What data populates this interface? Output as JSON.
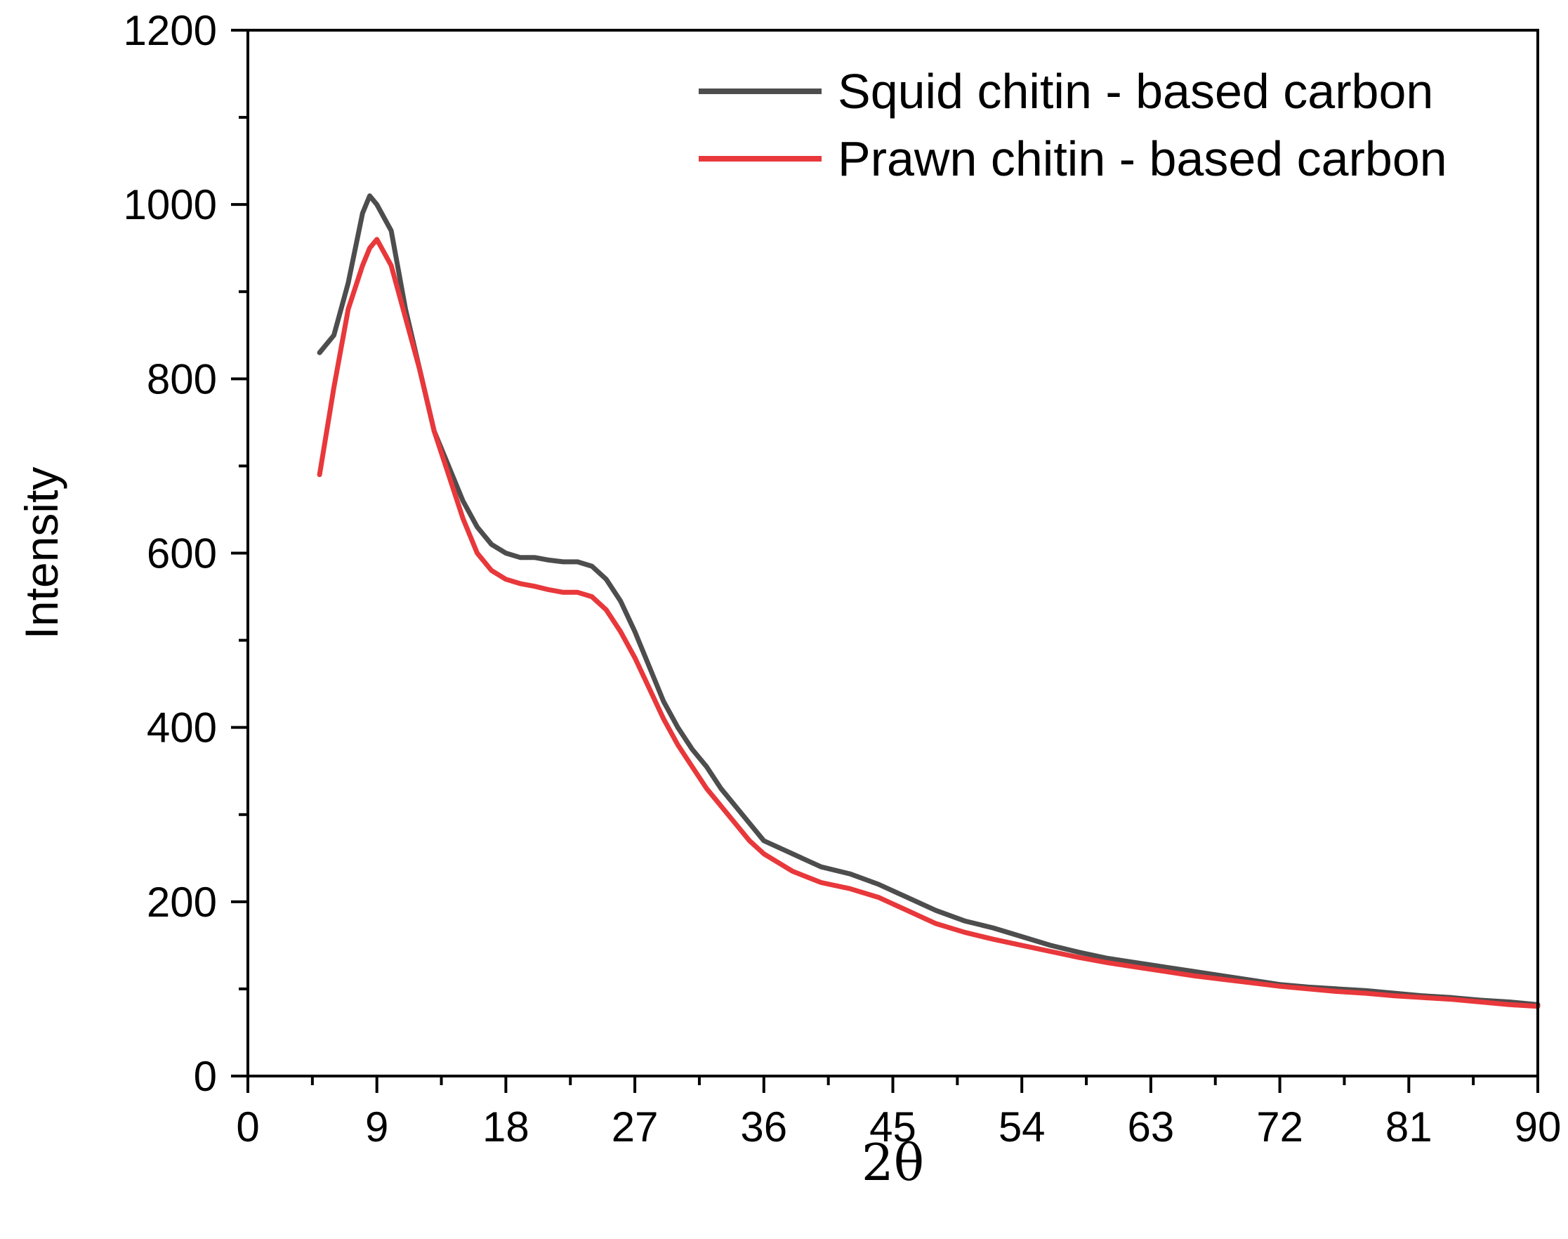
{
  "chart_data": {
    "type": "line",
    "title": "",
    "xlabel": "2θ",
    "ylabel": "Intensity",
    "xlim": [
      0,
      90
    ],
    "ylim": [
      0,
      1200
    ],
    "x_ticks": [
      0,
      9,
      18,
      27,
      36,
      45,
      54,
      63,
      72,
      81,
      90
    ],
    "y_ticks": [
      0,
      200,
      400,
      600,
      800,
      1000,
      1200
    ],
    "grid": false,
    "legend_position": "top-right",
    "series": [
      {
        "name": "Squid chitin - based carbon",
        "color": "#4d4d4d",
        "x": [
          5,
          6,
          7,
          8,
          8.5,
          9,
          10,
          11,
          12,
          13,
          14,
          15,
          16,
          17,
          18,
          19,
          20,
          21,
          22,
          23,
          24,
          25,
          26,
          27,
          28,
          29,
          30,
          31,
          32,
          33,
          34,
          35,
          36,
          38,
          40,
          42,
          44,
          46,
          48,
          50,
          52,
          54,
          56,
          58,
          60,
          62,
          64,
          66,
          68,
          70,
          72,
          74,
          76,
          78,
          80,
          82,
          84,
          86,
          88,
          90
        ],
        "y": [
          830,
          850,
          910,
          990,
          1010,
          1000,
          970,
          880,
          810,
          740,
          700,
          660,
          630,
          610,
          600,
          595,
          595,
          592,
          590,
          590,
          585,
          570,
          545,
          510,
          470,
          430,
          400,
          375,
          355,
          330,
          310,
          290,
          270,
          255,
          240,
          232,
          220,
          205,
          190,
          178,
          170,
          160,
          150,
          142,
          135,
          130,
          125,
          120,
          115,
          110,
          105,
          102,
          100,
          98,
          95,
          92,
          90,
          87,
          85,
          82
        ]
      },
      {
        "name": "Prawn chitin - based carbon",
        "color": "#e8383b",
        "x": [
          5,
          6,
          7,
          8,
          8.5,
          9,
          10,
          11,
          12,
          13,
          14,
          15,
          16,
          17,
          18,
          19,
          20,
          21,
          22,
          23,
          24,
          25,
          26,
          27,
          28,
          29,
          30,
          31,
          32,
          33,
          34,
          35,
          36,
          38,
          40,
          42,
          44,
          46,
          48,
          50,
          52,
          54,
          56,
          58,
          60,
          62,
          64,
          66,
          68,
          70,
          72,
          74,
          76,
          78,
          80,
          82,
          84,
          86,
          88,
          90
        ],
        "y": [
          690,
          790,
          880,
          930,
          950,
          960,
          930,
          870,
          810,
          740,
          690,
          640,
          600,
          580,
          570,
          565,
          562,
          558,
          555,
          555,
          550,
          535,
          510,
          480,
          445,
          410,
          380,
          355,
          330,
          310,
          290,
          270,
          255,
          235,
          222,
          215,
          205,
          190,
          175,
          165,
          157,
          150,
          143,
          136,
          130,
          125,
          120,
          115,
          111,
          107,
          103,
          100,
          97,
          95,
          92,
          90,
          88,
          85,
          82,
          80
        ]
      }
    ]
  }
}
